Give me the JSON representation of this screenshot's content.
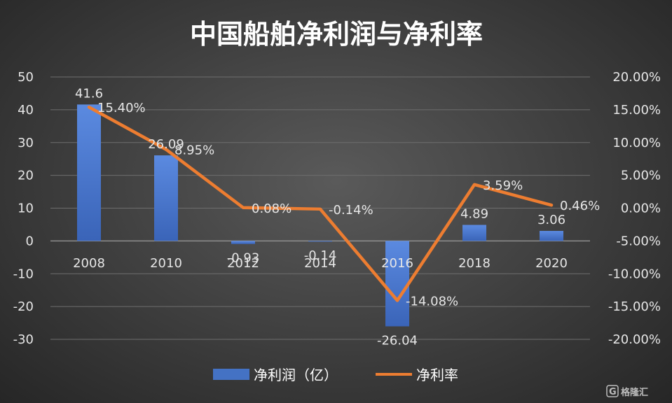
{
  "chart_data": {
    "type": "bar+line",
    "title": "中国船舶净利润与净利率",
    "categories": [
      "2008",
      "2010",
      "2012",
      "2014",
      "2016",
      "2018",
      "2020"
    ],
    "series": [
      {
        "name": "净利润（亿）",
        "type": "bar",
        "axis": "left",
        "color": "#4472c4",
        "values": [
          41.6,
          26.09,
          -0.93,
          -0.14,
          -26.04,
          4.89,
          3.06
        ],
        "labels": [
          "41.6",
          "26.09",
          "-0.93",
          "-0.14",
          "-26.04",
          "4.89",
          "3.06"
        ]
      },
      {
        "name": "净利率",
        "type": "line",
        "axis": "right",
        "color": "#ed7d31",
        "values": [
          15.4,
          8.95,
          0.08,
          -0.14,
          -14.08,
          3.59,
          0.46
        ],
        "labels": [
          "15.40%",
          "8.95%",
          "0.08%",
          "-0.14%",
          "-14.08%",
          "3.59%",
          "0.46%"
        ]
      }
    ],
    "y_left": {
      "ylim": [
        -30,
        50
      ],
      "ticks": [
        "50",
        "40",
        "30",
        "20",
        "10",
        "0",
        "-10",
        "-20",
        "-30"
      ]
    },
    "y_right": {
      "ylim": [
        -20,
        20
      ],
      "ticks": [
        "20.00%",
        "15.00%",
        "10.00%",
        "5.00%",
        "0.00%",
        "-5.00%",
        "-10.00%",
        "-15.00%",
        "-20.00%"
      ]
    },
    "grid": true,
    "legend_position": "bottom"
  },
  "watermark": {
    "text": "格隆汇"
  }
}
